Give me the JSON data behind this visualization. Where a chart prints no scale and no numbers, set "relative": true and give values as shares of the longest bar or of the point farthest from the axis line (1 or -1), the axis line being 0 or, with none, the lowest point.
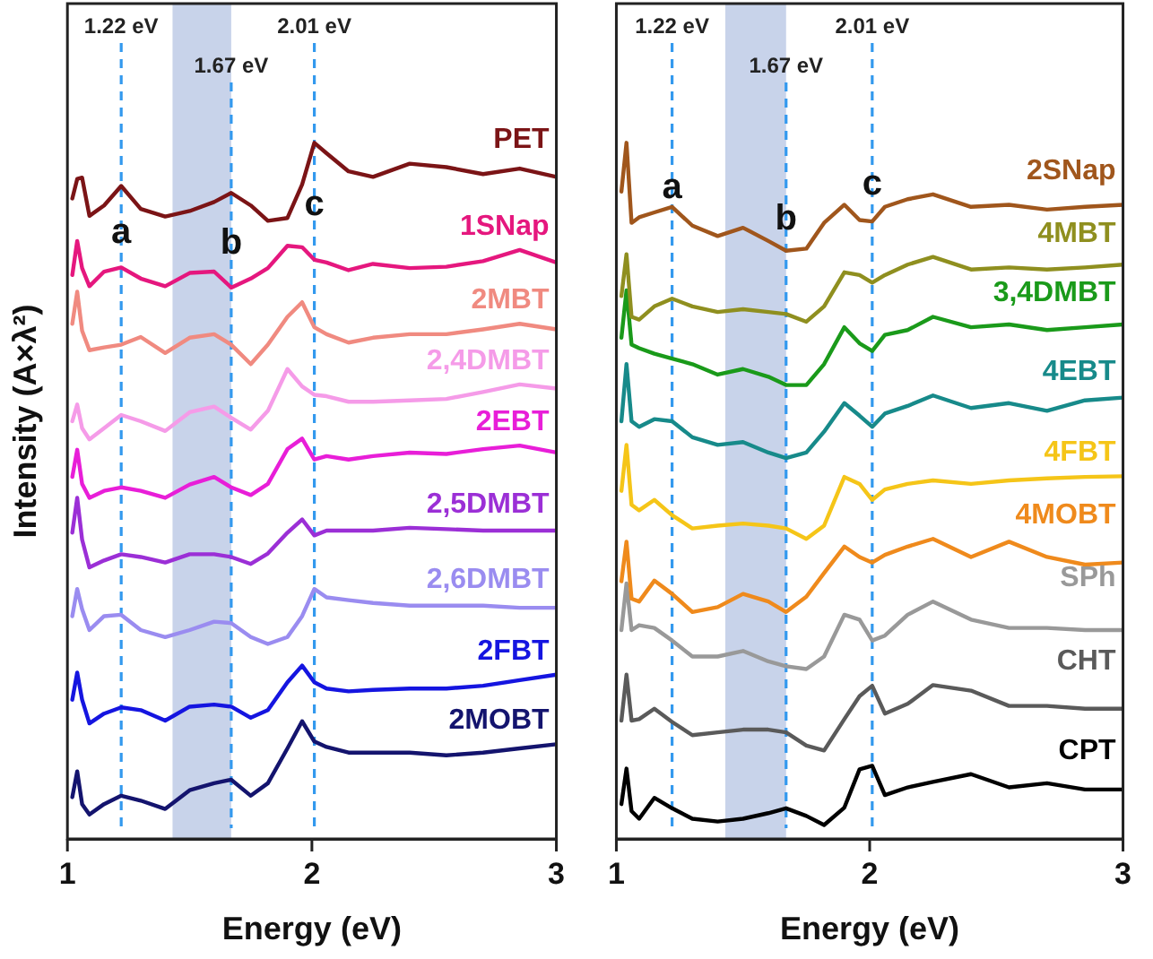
{
  "chart_data": [
    {
      "type": "line",
      "xlabel": "Energy (eV)",
      "ylabel": "Intensity (A×λ²)",
      "relative": true,
      "marker": "none",
      "line_style": "solid",
      "xlim": [
        1,
        3
      ],
      "xticks": [
        1,
        2,
        3
      ],
      "x": [
        1.02,
        1.04,
        1.06,
        1.09,
        1.15,
        1.22,
        1.3,
        1.4,
        1.5,
        1.6,
        1.67,
        1.75,
        1.82,
        1.9,
        1.96,
        2.01,
        2.06,
        2.15,
        2.25,
        2.4,
        2.55,
        2.7,
        2.85,
        3.0
      ],
      "bands": [
        {
          "axis": "x",
          "from": 1.43,
          "to": 1.67,
          "color": "#c8d3ea"
        }
      ],
      "ref_lines": [
        {
          "axis": "x",
          "value": 1.22,
          "label": "1.22 eV",
          "color": "#3399ee",
          "line_style": "dashed"
        },
        {
          "axis": "x",
          "value": 1.67,
          "label": "1.67 eV",
          "color": "#3399ee",
          "line_style": "dashed"
        },
        {
          "axis": "x",
          "value": 2.01,
          "label": "2.01 eV",
          "color": "#3399ee",
          "line_style": "dashed"
        }
      ],
      "annotations": [
        {
          "text": "a",
          "x": 1.22,
          "y": 0.87
        },
        {
          "text": "b",
          "x": 1.67,
          "y": 0.855
        },
        {
          "text": "c",
          "x": 2.01,
          "y": 0.91
        }
      ],
      "series": [
        {
          "name": "PET",
          "color": "#7b1416",
          "values": [
            0.92,
            0.948,
            0.95,
            0.895,
            0.91,
            0.938,
            0.905,
            0.894,
            0.902,
            0.915,
            0.928,
            0.91,
            0.888,
            0.892,
            0.94,
            1.0,
            0.985,
            0.959,
            0.951,
            0.97,
            0.965,
            0.955,
            0.963,
            0.951
          ]
        },
        {
          "name": "1SNap",
          "color": "#e5177e",
          "values": [
            0.81,
            0.859,
            0.82,
            0.794,
            0.815,
            0.821,
            0.805,
            0.794,
            0.813,
            0.815,
            0.792,
            0.805,
            0.82,
            0.852,
            0.85,
            0.832,
            0.828,
            0.817,
            0.826,
            0.82,
            0.822,
            0.83,
            0.846,
            0.828
          ]
        },
        {
          "name": "2MBT",
          "color": "#f08a80",
          "values": [
            0.74,
            0.786,
            0.73,
            0.702,
            0.706,
            0.71,
            0.721,
            0.698,
            0.72,
            0.725,
            0.71,
            0.682,
            0.71,
            0.75,
            0.771,
            0.735,
            0.725,
            0.713,
            0.72,
            0.725,
            0.725,
            0.732,
            0.74,
            0.732
          ]
        },
        {
          "name": "2,4DMBT",
          "color": "#f59be8",
          "values": [
            0.6,
            0.624,
            0.59,
            0.574,
            0.59,
            0.609,
            0.6,
            0.586,
            0.613,
            0.621,
            0.605,
            0.588,
            0.615,
            0.675,
            0.65,
            0.638,
            0.636,
            0.628,
            0.628,
            0.63,
            0.632,
            0.642,
            0.653,
            0.647
          ]
        },
        {
          "name": "2EBT",
          "color": "#e81ed8",
          "values": [
            0.52,
            0.559,
            0.51,
            0.49,
            0.5,
            0.505,
            0.5,
            0.49,
            0.509,
            0.52,
            0.505,
            0.494,
            0.51,
            0.56,
            0.575,
            0.545,
            0.55,
            0.545,
            0.55,
            0.555,
            0.553,
            0.56,
            0.565,
            0.555
          ]
        },
        {
          "name": "2,5DMBT",
          "color": "#9b2fd6",
          "values": [
            0.44,
            0.49,
            0.43,
            0.39,
            0.4,
            0.409,
            0.405,
            0.397,
            0.409,
            0.409,
            0.405,
            0.395,
            0.41,
            0.44,
            0.459,
            0.436,
            0.443,
            0.443,
            0.443,
            0.447,
            0.445,
            0.443,
            0.443,
            0.443
          ]
        },
        {
          "name": "2,6DMBT",
          "color": "#9a8cf0",
          "values": [
            0.32,
            0.359,
            0.33,
            0.3,
            0.32,
            0.322,
            0.3,
            0.29,
            0.3,
            0.312,
            0.31,
            0.29,
            0.28,
            0.29,
            0.32,
            0.359,
            0.347,
            0.343,
            0.339,
            0.335,
            0.335,
            0.335,
            0.332,
            0.332
          ]
        },
        {
          "name": "2FBT",
          "color": "#1515e0",
          "values": [
            0.2,
            0.239,
            0.2,
            0.166,
            0.18,
            0.189,
            0.185,
            0.17,
            0.19,
            0.193,
            0.19,
            0.174,
            0.185,
            0.225,
            0.249,
            0.225,
            0.216,
            0.212,
            0.214,
            0.216,
            0.216,
            0.22,
            0.228,
            0.236
          ]
        },
        {
          "name": "2MOBT",
          "color": "#14146e",
          "values": [
            0.06,
            0.097,
            0.05,
            0.035,
            0.05,
            0.062,
            0.055,
            0.043,
            0.07,
            0.08,
            0.085,
            0.062,
            0.08,
            0.13,
            0.169,
            0.14,
            0.132,
            0.124,
            0.124,
            0.124,
            0.12,
            0.124,
            0.13,
            0.136
          ]
        }
      ]
    },
    {
      "type": "line",
      "xlabel": "Energy (eV)",
      "relative": true,
      "marker": "none",
      "line_style": "solid",
      "xlim": [
        1,
        3
      ],
      "xticks": [
        1,
        2,
        3
      ],
      "x": [
        1.02,
        1.04,
        1.06,
        1.09,
        1.15,
        1.22,
        1.3,
        1.4,
        1.5,
        1.6,
        1.67,
        1.75,
        1.82,
        1.9,
        1.96,
        2.01,
        2.06,
        2.15,
        2.25,
        2.4,
        2.55,
        2.7,
        2.85,
        3.0
      ],
      "bands": [
        {
          "axis": "x",
          "from": 1.43,
          "to": 1.67,
          "color": "#c8d3ea"
        }
      ],
      "ref_lines": [
        {
          "axis": "x",
          "value": 1.22,
          "label": "1.22 eV",
          "color": "#3399ee",
          "line_style": "dashed"
        },
        {
          "axis": "x",
          "value": 1.67,
          "label": "1.67 eV",
          "color": "#3399ee",
          "line_style": "dashed"
        },
        {
          "axis": "x",
          "value": 2.01,
          "label": "2.01 eV",
          "color": "#3399ee",
          "line_style": "dashed"
        }
      ],
      "annotations": [
        {
          "text": "a",
          "x": 1.22,
          "y": 0.935
        },
        {
          "text": "b",
          "x": 1.67,
          "y": 0.89
        },
        {
          "text": "c",
          "x": 2.01,
          "y": 0.94
        }
      ],
      "series": [
        {
          "name": "2SNap",
          "color": "#a0561c",
          "values": [
            0.93,
            1.0,
            0.885,
            0.893,
            0.9,
            0.908,
            0.881,
            0.866,
            0.878,
            0.859,
            0.845,
            0.848,
            0.885,
            0.911,
            0.889,
            0.887,
            0.908,
            0.919,
            0.926,
            0.908,
            0.911,
            0.904,
            0.908,
            0.911
          ]
        },
        {
          "name": "4MBT",
          "color": "#8f8f1f",
          "values": [
            0.78,
            0.84,
            0.75,
            0.746,
            0.765,
            0.776,
            0.765,
            0.757,
            0.761,
            0.757,
            0.754,
            0.743,
            0.765,
            0.814,
            0.81,
            0.799,
            0.81,
            0.825,
            0.836,
            0.818,
            0.821,
            0.818,
            0.821,
            0.825
          ]
        },
        {
          "name": "3,4DMBT",
          "color": "#1a9a1a",
          "values": [
            0.72,
            0.788,
            0.71,
            0.705,
            0.697,
            0.69,
            0.682,
            0.667,
            0.675,
            0.664,
            0.652,
            0.652,
            0.682,
            0.735,
            0.712,
            0.701,
            0.724,
            0.731,
            0.75,
            0.735,
            0.739,
            0.731,
            0.735,
            0.739
          ]
        },
        {
          "name": "4EBT",
          "color": "#178a8a",
          "values": [
            0.6,
            0.682,
            0.6,
            0.592,
            0.603,
            0.6,
            0.577,
            0.566,
            0.57,
            0.555,
            0.547,
            0.555,
            0.585,
            0.626,
            0.608,
            0.592,
            0.611,
            0.622,
            0.637,
            0.619,
            0.626,
            0.615,
            0.63,
            0.634
          ]
        },
        {
          "name": "4FBT",
          "color": "#f5c518",
          "values": [
            0.5,
            0.566,
            0.48,
            0.472,
            0.487,
            0.465,
            0.446,
            0.45,
            0.453,
            0.45,
            0.446,
            0.431,
            0.45,
            0.52,
            0.51,
            0.487,
            0.502,
            0.51,
            0.515,
            0.51,
            0.515,
            0.518,
            0.52,
            0.521
          ]
        },
        {
          "name": "4MOBT",
          "color": "#ef8a1c",
          "values": [
            0.37,
            0.427,
            0.345,
            0.341,
            0.371,
            0.352,
            0.326,
            0.333,
            0.352,
            0.341,
            0.326,
            0.348,
            0.382,
            0.42,
            0.405,
            0.397,
            0.408,
            0.42,
            0.431,
            0.405,
            0.427,
            0.405,
            0.394,
            0.397
          ]
        },
        {
          "name": "SPh",
          "color": "#999999",
          "values": [
            0.3,
            0.367,
            0.3,
            0.307,
            0.303,
            0.285,
            0.262,
            0.262,
            0.27,
            0.255,
            0.248,
            0.244,
            0.262,
            0.322,
            0.315,
            0.285,
            0.292,
            0.322,
            0.341,
            0.315,
            0.303,
            0.303,
            0.3,
            0.3
          ]
        },
        {
          "name": "CHT",
          "color": "#5a5a5a",
          "values": [
            0.17,
            0.236,
            0.17,
            0.172,
            0.187,
            0.168,
            0.149,
            0.153,
            0.157,
            0.157,
            0.153,
            0.134,
            0.127,
            0.172,
            0.205,
            0.22,
            0.18,
            0.194,
            0.221,
            0.213,
            0.191,
            0.191,
            0.187,
            0.187
          ]
        },
        {
          "name": "CPT",
          "color": "#000000",
          "values": [
            0.05,
            0.101,
            0.04,
            0.029,
            0.059,
            0.044,
            0.029,
            0.025,
            0.029,
            0.037,
            0.044,
            0.033,
            0.02,
            0.045,
            0.1,
            0.105,
            0.063,
            0.074,
            0.082,
            0.093,
            0.074,
            0.08,
            0.071,
            0.071
          ]
        }
      ]
    }
  ]
}
